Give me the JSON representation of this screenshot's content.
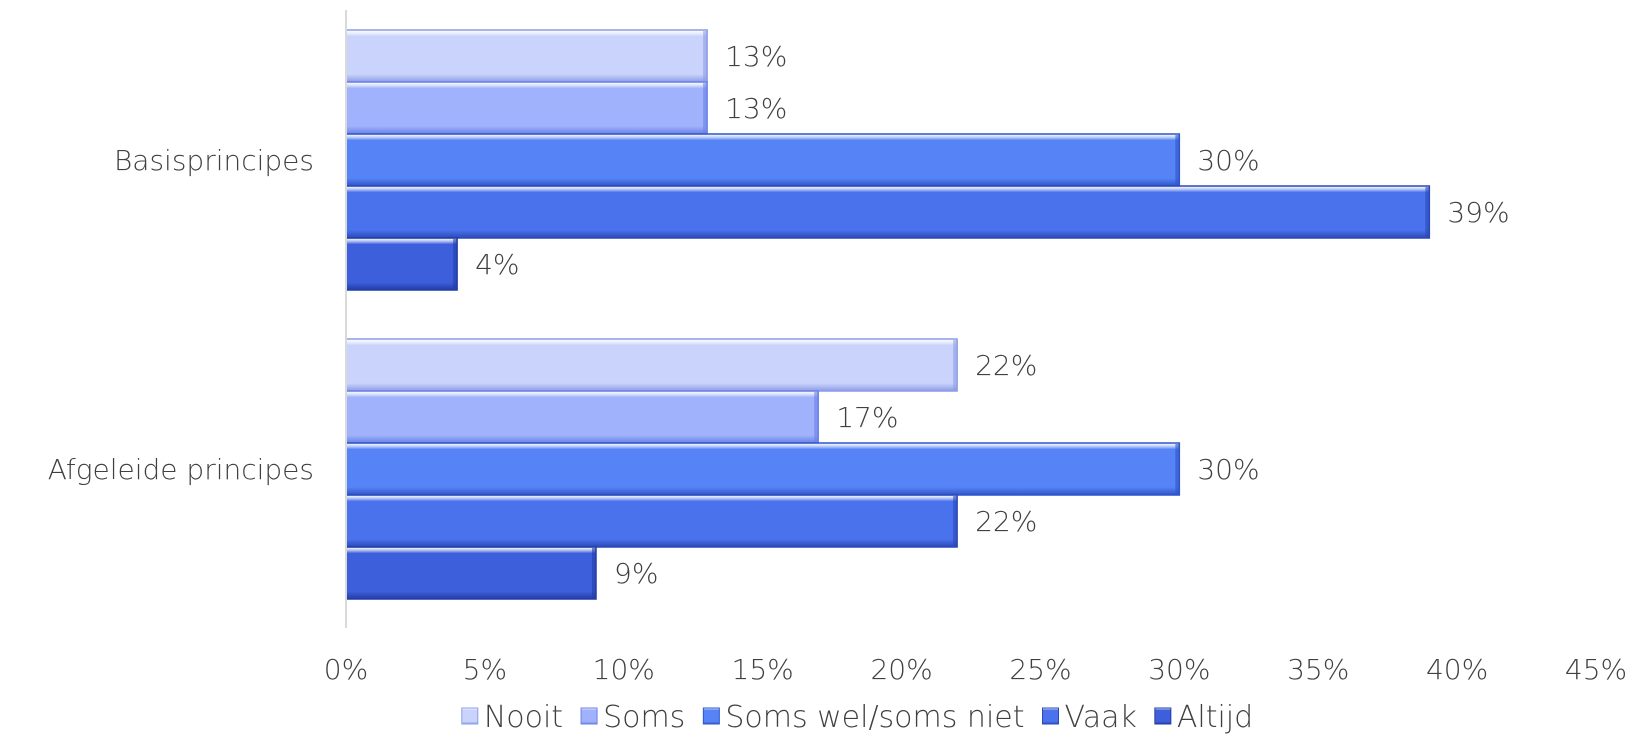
{
  "chart_data": {
    "type": "bar",
    "orientation": "horizontal",
    "categories": [
      "Basisprincipes",
      "Afgeleide principes"
    ],
    "series": [
      {
        "name": "Nooit",
        "values": [
          13,
          22
        ],
        "labels": [
          "13%",
          "22%"
        ],
        "color": "#c9d3fb",
        "edge": "#8d9ce6"
      },
      {
        "name": "Soms",
        "values": [
          13,
          17
        ],
        "labels": [
          "13%",
          "17%"
        ],
        "color": "#9fb2fb",
        "edge": "#6a80e8"
      },
      {
        "name": "Soms wel/soms niet",
        "values": [
          30,
          30
        ],
        "labels": [
          "30%",
          "30%"
        ],
        "color": "#5683f5",
        "edge": "#2f55c9"
      },
      {
        "name": "Vaak",
        "values": [
          39,
          22
        ],
        "labels": [
          "39%",
          "22%"
        ],
        "color": "#4a72ec",
        "edge": "#2b48b8"
      },
      {
        "name": "Altijd",
        "values": [
          4,
          9
        ],
        "labels": [
          "4%",
          "9%"
        ],
        "color": "#3e5fdc",
        "edge": "#233da6"
      }
    ],
    "xlim": [
      0,
      45
    ],
    "xticks": [
      0,
      5,
      10,
      15,
      20,
      25,
      30,
      35,
      40,
      45
    ],
    "xtick_labels": [
      "0%",
      "5%",
      "10%",
      "15%",
      "20%",
      "25%",
      "30%",
      "35%",
      "40%",
      "45%"
    ],
    "grid": false,
    "legend": "bottom"
  }
}
